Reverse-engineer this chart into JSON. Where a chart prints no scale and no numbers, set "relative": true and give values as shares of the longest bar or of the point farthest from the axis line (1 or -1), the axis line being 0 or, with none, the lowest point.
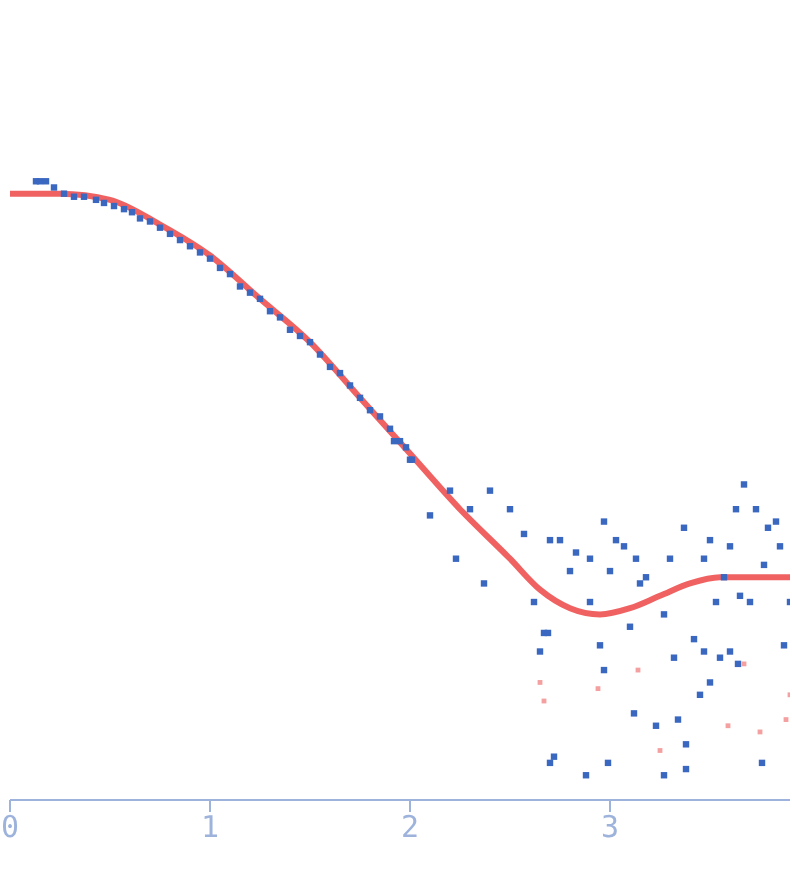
{
  "chart_data": {
    "type": "scatter",
    "relative": true,
    "xlim": [
      0,
      3.9
    ],
    "xticks": [
      0,
      1,
      2,
      3
    ],
    "series": [
      {
        "marker": "square",
        "color": "#3a67c0",
        "x": [
          0.13,
          0.15,
          0.18,
          0.22,
          0.27,
          0.32,
          0.37,
          0.43,
          0.47,
          0.52,
          0.57,
          0.61,
          0.65,
          0.7,
          0.75,
          0.8,
          0.85,
          0.9,
          0.95,
          1.0,
          1.05,
          1.1,
          1.15,
          1.2,
          1.25,
          1.3,
          1.35,
          1.4,
          1.45,
          1.5,
          1.55,
          1.6,
          1.65,
          1.7,
          1.75,
          1.8,
          1.85,
          1.9,
          1.95,
          1.98,
          2.01,
          1.92,
          2.0,
          2.1,
          2.2,
          2.23,
          2.3,
          2.4,
          2.5,
          2.37,
          2.57,
          2.7,
          2.62,
          2.67,
          2.65,
          2.69,
          2.72,
          2.75,
          2.8,
          2.83,
          2.9,
          2.9,
          2.97,
          2.95,
          2.97,
          3.0,
          2.99,
          3.03,
          3.07,
          3.1,
          3.12,
          3.13,
          3.15,
          3.18,
          3.23,
          3.27,
          3.3,
          3.32,
          3.34,
          3.37,
          3.38,
          3.38,
          3.42,
          3.45,
          3.47,
          3.5,
          3.53,
          3.57,
          3.6,
          3.63,
          3.65,
          3.67,
          3.7,
          3.73,
          3.77,
          3.79,
          3.83,
          3.85,
          3.87,
          3.9,
          3.5,
          3.55,
          3.6,
          3.64,
          3.76,
          3.47,
          2.7,
          2.88,
          3.27
        ],
        "values": [
          1.0,
          1.0,
          1.0,
          0.99,
          0.98,
          0.975,
          0.975,
          0.97,
          0.965,
          0.96,
          0.955,
          0.95,
          0.94,
          0.935,
          0.925,
          0.915,
          0.905,
          0.895,
          0.885,
          0.875,
          0.86,
          0.85,
          0.83,
          0.82,
          0.81,
          0.79,
          0.78,
          0.76,
          0.75,
          0.74,
          0.72,
          0.7,
          0.69,
          0.67,
          0.65,
          0.63,
          0.62,
          0.6,
          0.58,
          0.57,
          0.55,
          0.58,
          0.55,
          0.46,
          0.5,
          0.39,
          0.47,
          0.5,
          0.47,
          0.35,
          0.43,
          0.42,
          0.32,
          0.27,
          0.24,
          0.27,
          0.07,
          0.42,
          0.37,
          0.4,
          0.39,
          0.32,
          0.45,
          0.25,
          0.21,
          0.37,
          0.06,
          0.42,
          0.41,
          0.28,
          0.14,
          0.39,
          0.35,
          0.36,
          0.12,
          0.3,
          0.39,
          0.23,
          0.13,
          0.44,
          0.09,
          0.05,
          0.26,
          0.17,
          0.39,
          0.42,
          0.32,
          0.36,
          0.41,
          0.47,
          0.33,
          0.51,
          0.32,
          0.47,
          0.38,
          0.44,
          0.45,
          0.41,
          0.25,
          0.32,
          0.19,
          0.23,
          0.24,
          0.22,
          0.06,
          0.24,
          0.06,
          0.04,
          0.04
        ]
      },
      {
        "type": "line",
        "marker": "none",
        "color": "#f06262",
        "x": [
          0,
          0.25,
          0.5,
          0.75,
          1.0,
          1.25,
          1.5,
          1.75,
          2.0,
          2.25,
          2.5,
          2.65,
          2.8,
          2.95,
          3.1,
          3.25,
          3.4,
          3.55,
          3.7,
          3.9
        ],
        "values": [
          0.98,
          0.98,
          0.97,
          0.93,
          0.88,
          0.81,
          0.74,
          0.65,
          0.56,
          0.47,
          0.39,
          0.34,
          0.31,
          0.3,
          0.31,
          0.33,
          0.35,
          0.36,
          0.36,
          0.36
        ]
      },
      {
        "marker": "square",
        "color": "#f4a0a0",
        "x": [
          2.65,
          2.67,
          2.94,
          3.14,
          3.25,
          3.59,
          3.67,
          3.75,
          3.88,
          3.9
        ],
        "values": [
          0.19,
          0.16,
          0.18,
          0.21,
          0.08,
          0.12,
          0.22,
          0.11,
          0.13,
          0.17
        ]
      }
    ]
  }
}
